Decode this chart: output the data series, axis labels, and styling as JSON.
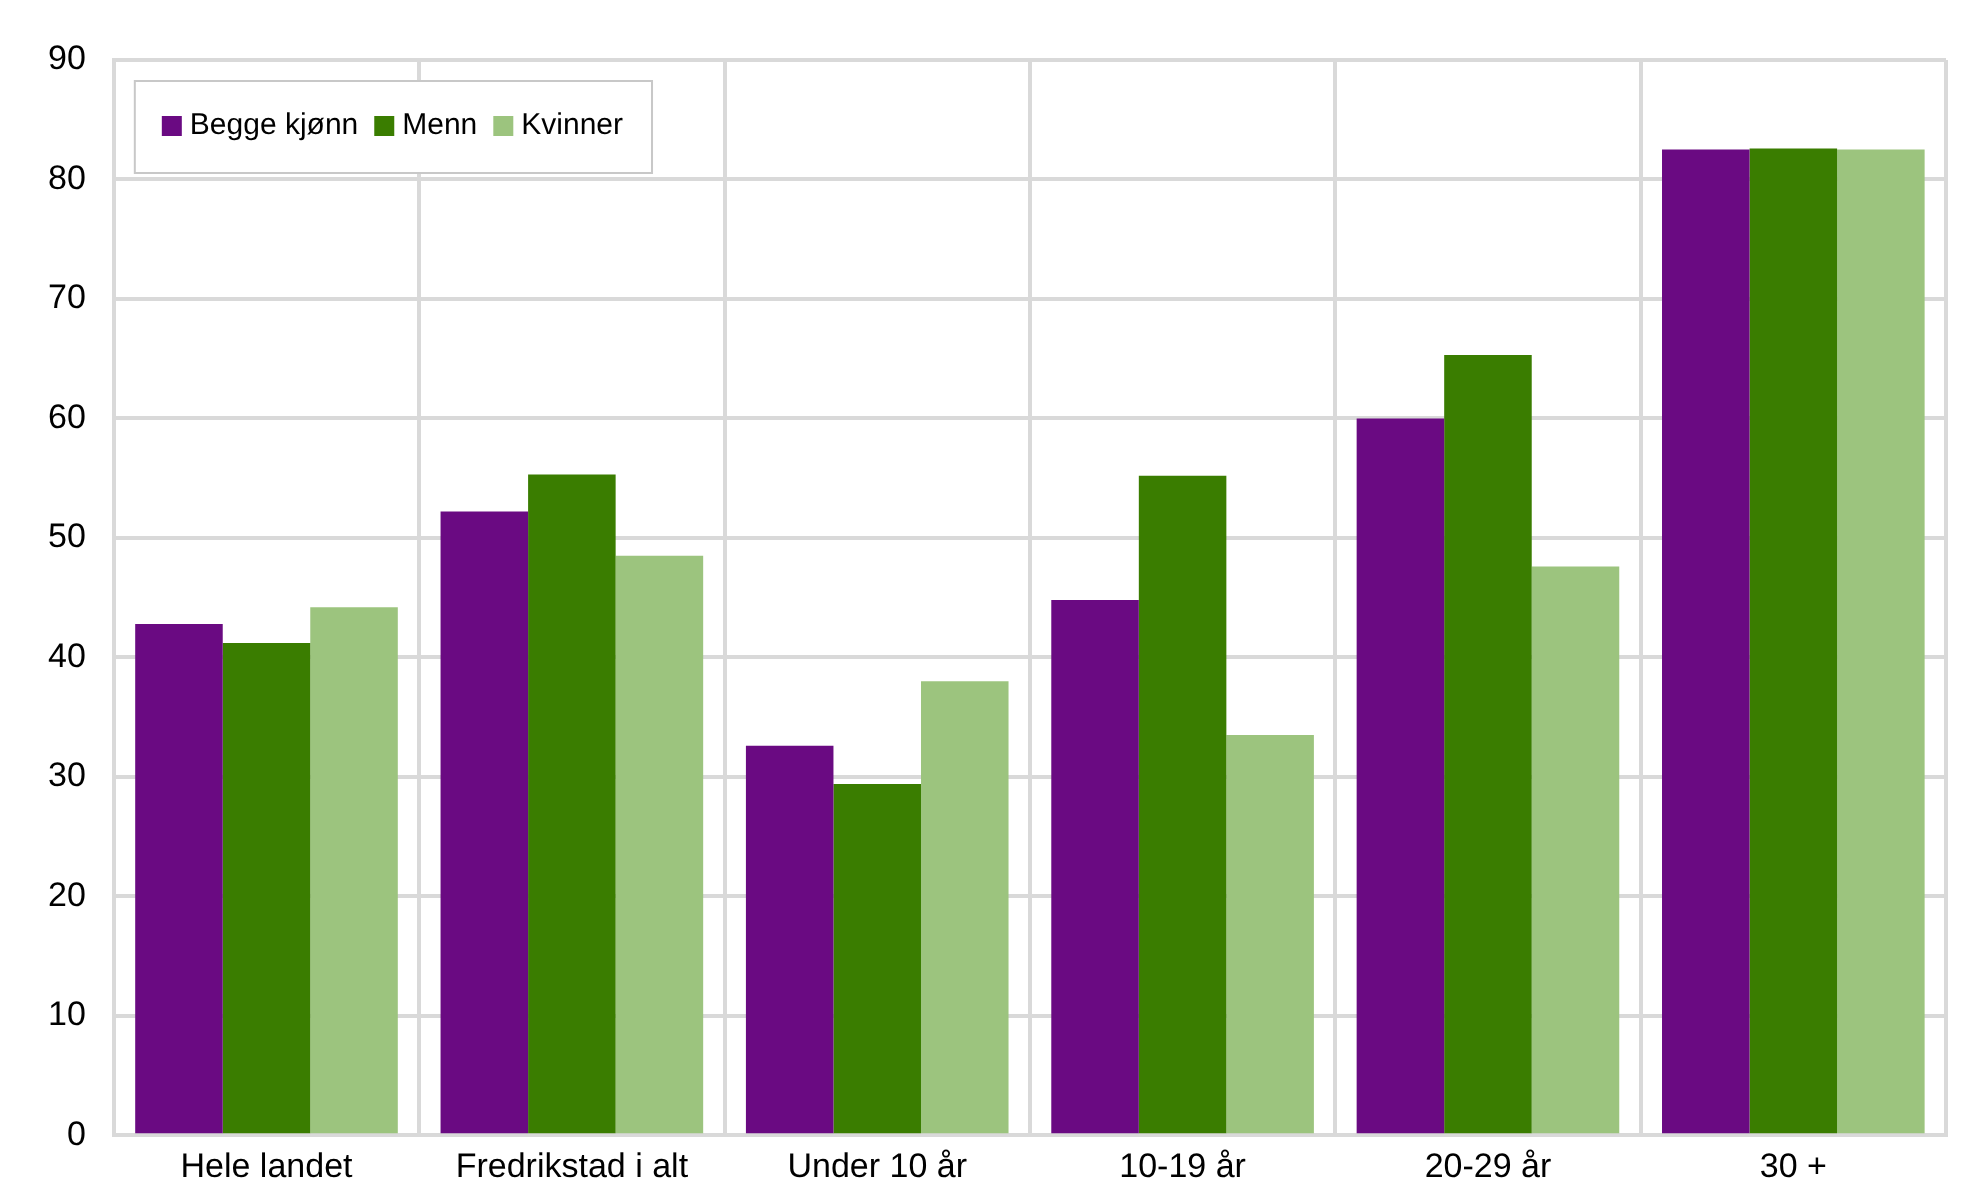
{
  "chart_data": {
    "type": "bar",
    "categories": [
      "Hele landet",
      "Fredrikstad i alt",
      "Under 10 år",
      "10-19 år",
      "20-29 år",
      "30 +"
    ],
    "series": [
      {
        "name": "Begge kjønn",
        "color": "#6a0a82",
        "values": [
          42.8,
          52.2,
          32.6,
          44.8,
          60.0,
          82.5
        ]
      },
      {
        "name": "Menn",
        "color": "#3a7d00",
        "values": [
          41.2,
          55.3,
          29.4,
          55.2,
          65.3,
          82.6
        ]
      },
      {
        "name": "Kvinner",
        "color": "#9cc47e",
        "values": [
          44.2,
          48.5,
          38.0,
          33.5,
          47.6,
          82.5
        ]
      }
    ],
    "ylim": [
      0,
      90
    ],
    "yticks": [
      0,
      10,
      20,
      30,
      40,
      50,
      60,
      70,
      80,
      90
    ],
    "grid": true,
    "legend": "top left"
  }
}
